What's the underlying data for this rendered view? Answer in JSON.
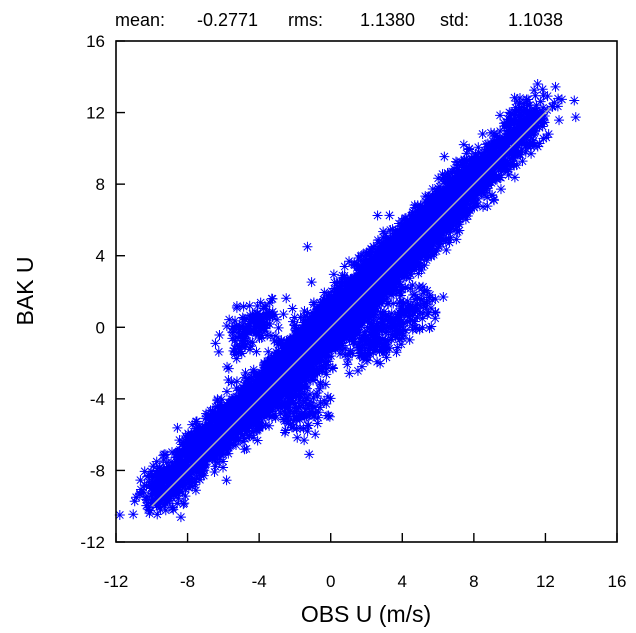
{
  "stats": {
    "mean_label": "mean:",
    "mean_value": "-0.2771",
    "rms_label": "rms:",
    "rms_value": "1.1380",
    "std_label": "std:",
    "std_value": "1.1038"
  },
  "chart_data": {
    "type": "scatter",
    "title": "",
    "xlabel": "OBS U  (m/s)",
    "ylabel": "BAK U",
    "xlim": [
      -12,
      16
    ],
    "ylim": [
      -12,
      16
    ],
    "xticks": [
      -12,
      -8,
      -4,
      0,
      4,
      8,
      12,
      16
    ],
    "yticks": [
      -12,
      -8,
      -4,
      0,
      4,
      8,
      12,
      16
    ],
    "marker": "asterisk",
    "marker_color": "#0000ff",
    "reference_line": {
      "from": [
        -10,
        -10
      ],
      "to": [
        12.3,
        12.3
      ],
      "color": "#b0b0b0"
    },
    "clusters": [
      {
        "x": -9,
        "y": -8.6,
        "n": 320
      },
      {
        "x": -7,
        "y": -6.6,
        "n": 520
      },
      {
        "x": -5,
        "y": -4.8,
        "n": 650
      },
      {
        "x": -3,
        "y": -3.0,
        "n": 800
      },
      {
        "x": -1.5,
        "y": -1.5,
        "n": 900
      },
      {
        "x": 0,
        "y": 0.2,
        "n": 1000
      },
      {
        "x": 1.5,
        "y": 1.6,
        "n": 950
      },
      {
        "x": 3,
        "y": 3.3,
        "n": 900
      },
      {
        "x": 4.5,
        "y": 4.6,
        "n": 750
      },
      {
        "x": 6,
        "y": 6.2,
        "n": 650
      },
      {
        "x": 7.5,
        "y": 7.9,
        "n": 500
      },
      {
        "x": 9,
        "y": 9.2,
        "n": 300
      },
      {
        "x": 10.8,
        "y": 11.2,
        "n": 260
      },
      {
        "x": -4.3,
        "y": 0,
        "n": 150
      },
      {
        "x": 4.3,
        "y": 0.6,
        "n": 120
      },
      {
        "x": 2.5,
        "y": -0.6,
        "n": 160
      },
      {
        "x": -1.5,
        "y": -4.5,
        "n": 110
      }
    ],
    "outliers": [
      {
        "x": -1.3,
        "y": 4.5
      },
      {
        "x": -1.2,
        "y": -7.1
      },
      {
        "x": 11.6,
        "y": 11.5
      },
      {
        "x": -10.0,
        "y": -9.3
      },
      {
        "x": 11.2,
        "y": 9.7
      },
      {
        "x": 5.4,
        "y": 0.7
      }
    ]
  }
}
